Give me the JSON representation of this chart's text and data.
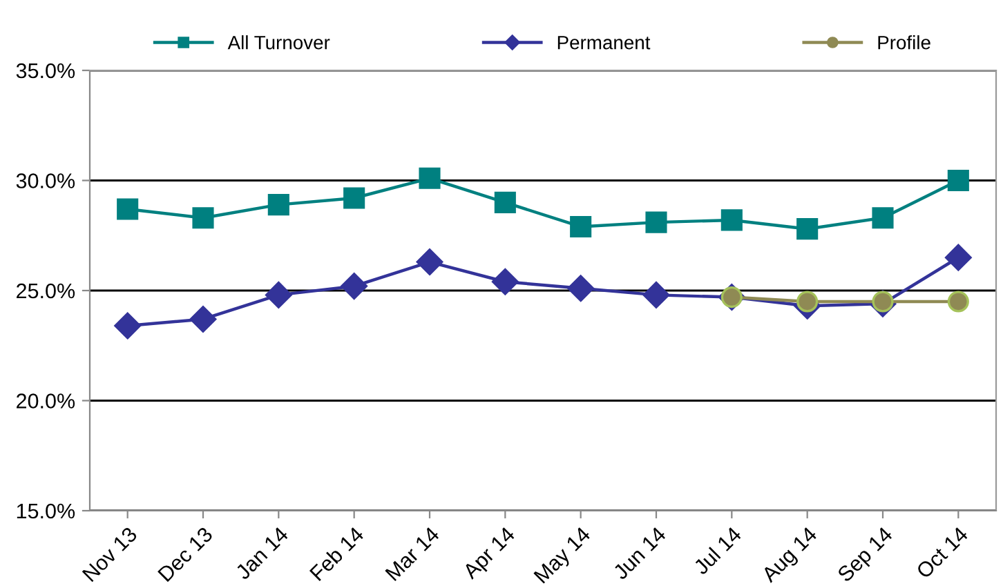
{
  "chart_data": {
    "type": "line",
    "categories": [
      "Nov 13",
      "Dec 13",
      "Jan 14",
      "Feb 14",
      "Mar 14",
      "Apr 14",
      "May 14",
      "Jun 14",
      "Jul 14",
      "Aug 14",
      "Sep 14",
      "Oct 14"
    ],
    "series": [
      {
        "name": "All Turnover",
        "color": "#008080",
        "marker": "square",
        "values": [
          28.7,
          28.3,
          28.9,
          29.2,
          30.1,
          29.0,
          27.9,
          28.1,
          28.2,
          27.8,
          28.3,
          30.0
        ]
      },
      {
        "name": "Permanent",
        "color": "#333399",
        "marker": "diamond",
        "values": [
          23.4,
          23.7,
          24.8,
          25.2,
          26.3,
          25.4,
          25.1,
          24.8,
          24.7,
          24.3,
          24.4,
          26.5
        ]
      },
      {
        "name": "Profile",
        "color": "#8f8a54",
        "marker": "circle",
        "values": [
          null,
          null,
          null,
          null,
          null,
          null,
          null,
          null,
          24.7,
          24.5,
          24.5,
          24.5
        ]
      }
    ],
    "ylim": [
      15,
      35
    ],
    "yticks": [
      {
        "value": 15,
        "label": "15.0%"
      },
      {
        "value": 20,
        "label": "20.0%"
      },
      {
        "value": 25,
        "label": "25.0%"
      },
      {
        "value": 30,
        "label": "30.0%"
      },
      {
        "value": 35,
        "label": "35.0%"
      }
    ],
    "grid": "y",
    "legend": "top",
    "line_style": "solid"
  }
}
